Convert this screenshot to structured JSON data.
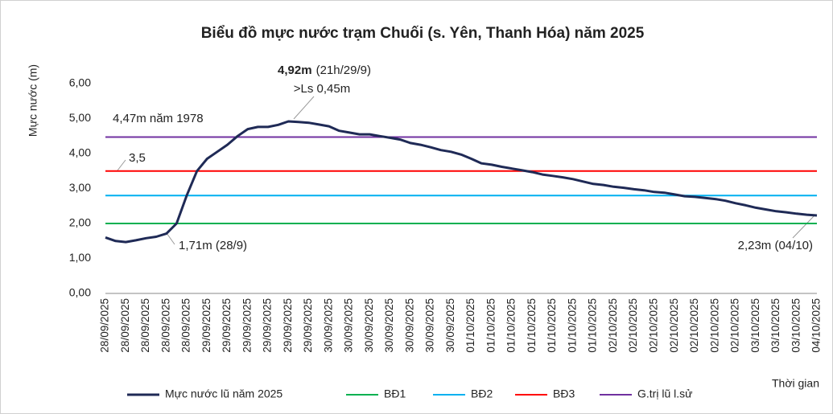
{
  "chart_data": {
    "type": "line",
    "title": "Biểu đồ mực nước trạm Chuối (s. Yên, Thanh Hóa) năm 2025",
    "y_label": "Mực nước (m)",
    "x_label": "Thời gian",
    "categories": [
      "28/09/2025",
      null,
      "28/09/2025",
      null,
      "28/09/2025",
      null,
      "28/09/2025",
      null,
      "28/09/2025",
      null,
      "29/09/2025",
      null,
      "29/09/2025",
      null,
      "29/09/2025",
      null,
      "29/09/2025",
      null,
      "29/09/2025",
      null,
      "29/09/2025",
      null,
      "30/09/2025",
      null,
      "30/09/2025",
      null,
      "30/09/2025",
      null,
      "30/09/2025",
      null,
      "30/09/2025",
      null,
      "30/09/2025",
      null,
      "30/09/2025",
      null,
      "01/10/2025",
      null,
      "01/10/2025",
      null,
      "01/10/2025",
      null,
      "01/10/2025",
      null,
      "01/10/2025",
      null,
      "01/10/2025",
      null,
      "01/10/2025",
      null,
      "02/10/2025",
      null,
      "02/10/2025",
      null,
      "02/10/2025",
      null,
      "02/10/2025",
      null,
      "02/10/2025",
      null,
      "02/10/2025",
      null,
      "02/10/2025",
      null,
      "03/10/2025",
      null,
      "03/10/2025",
      null,
      "03/10/2025",
      null,
      "04/10/2025"
    ],
    "series": [
      {
        "name": "Mực nước lũ năm 2025",
        "color": "#1f2a56",
        "values": [
          1.6,
          1.5,
          1.47,
          1.52,
          1.58,
          1.62,
          1.71,
          2.0,
          2.8,
          3.5,
          3.85,
          4.05,
          4.25,
          4.5,
          4.7,
          4.76,
          4.76,
          4.82,
          4.92,
          4.9,
          4.88,
          4.83,
          4.78,
          4.65,
          4.6,
          4.55,
          4.55,
          4.5,
          4.45,
          4.4,
          4.3,
          4.25,
          4.18,
          4.1,
          4.05,
          3.97,
          3.85,
          3.72,
          3.68,
          3.62,
          3.57,
          3.52,
          3.47,
          3.4,
          3.36,
          3.32,
          3.27,
          3.2,
          3.13,
          3.1,
          3.05,
          3.02,
          2.98,
          2.95,
          2.9,
          2.88,
          2.83,
          2.78,
          2.76,
          2.73,
          2.7,
          2.65,
          2.58,
          2.52,
          2.45,
          2.4,
          2.35,
          2.32,
          2.28,
          2.25,
          2.23
        ]
      }
    ],
    "reference_lines": [
      {
        "name": "BĐ1",
        "color": "#00b050",
        "value": 2.0
      },
      {
        "name": "BĐ2",
        "color": "#00b0f0",
        "value": 2.8
      },
      {
        "name": "BĐ3",
        "color": "#ff0000",
        "value": 3.5
      },
      {
        "name": "G.trị lũ l.sử",
        "color": "#7030a0",
        "value": 4.47
      }
    ],
    "annotations": [
      {
        "bold": "4,92m",
        "text": "(21h/29/9)"
      },
      {
        "text": ">Ls 0,45m"
      },
      {
        "text": "4,47m năm 1978"
      },
      {
        "text": "3,5"
      },
      {
        "text": "1,71m (28/9)"
      },
      {
        "text": "2,23m (04/10)"
      }
    ],
    "ylim": [
      0,
      6
    ],
    "yticks": [
      {
        "value": 0,
        "label": "0,00"
      },
      {
        "value": 1,
        "label": "1,00"
      },
      {
        "value": 2,
        "label": "2,00"
      },
      {
        "value": 3,
        "label": "3,00"
      },
      {
        "value": 4,
        "label": "4,00"
      },
      {
        "value": 5,
        "label": "5,00"
      },
      {
        "value": 6,
        "label": "6,00"
      }
    ],
    "grid": false,
    "legend": "bottom"
  }
}
